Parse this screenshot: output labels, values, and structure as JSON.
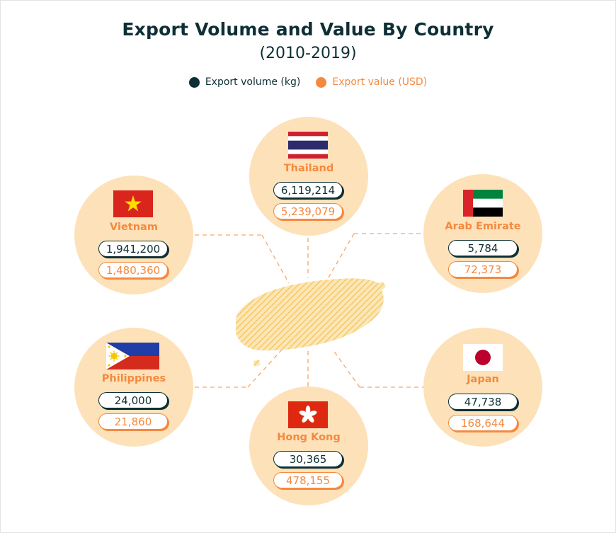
{
  "title": "Export Volume and Value By Country",
  "subtitle": "(2010-2019)",
  "legend": {
    "volume_label": "Export volume (kg)",
    "value_label": "Export value (USD)",
    "volume_color": "#0d2f35",
    "value_color": "#f5893f"
  },
  "countries": [
    {
      "id": "thailand",
      "name": "Thailand",
      "volume": "6,119,214",
      "value": "5,239,079",
      "flag": "thailand-flag"
    },
    {
      "id": "vietnam",
      "name": "Vietnam",
      "volume": "1,941,200",
      "value": "1,480,360",
      "flag": "vietnam-flag"
    },
    {
      "id": "uae",
      "name": "Arab Emirate",
      "volume": "5,784",
      "value": "72,373",
      "flag": "uae-flag"
    },
    {
      "id": "philippines",
      "name": "Philippines",
      "volume": "24,000",
      "value": "21,860",
      "flag": "philippines-flag"
    },
    {
      "id": "hongkong",
      "name": "Hong Kong",
      "volume": "30,365",
      "value": "478,155",
      "flag": "hong-kong-flag"
    },
    {
      "id": "japan",
      "name": "Japan",
      "volume": "47,738",
      "value": "168,644",
      "flag": "japan-flag"
    }
  ],
  "colors": {
    "bubble": "#fde1b8",
    "island": "#f6cf78",
    "connector": "#f5a66a"
  }
}
